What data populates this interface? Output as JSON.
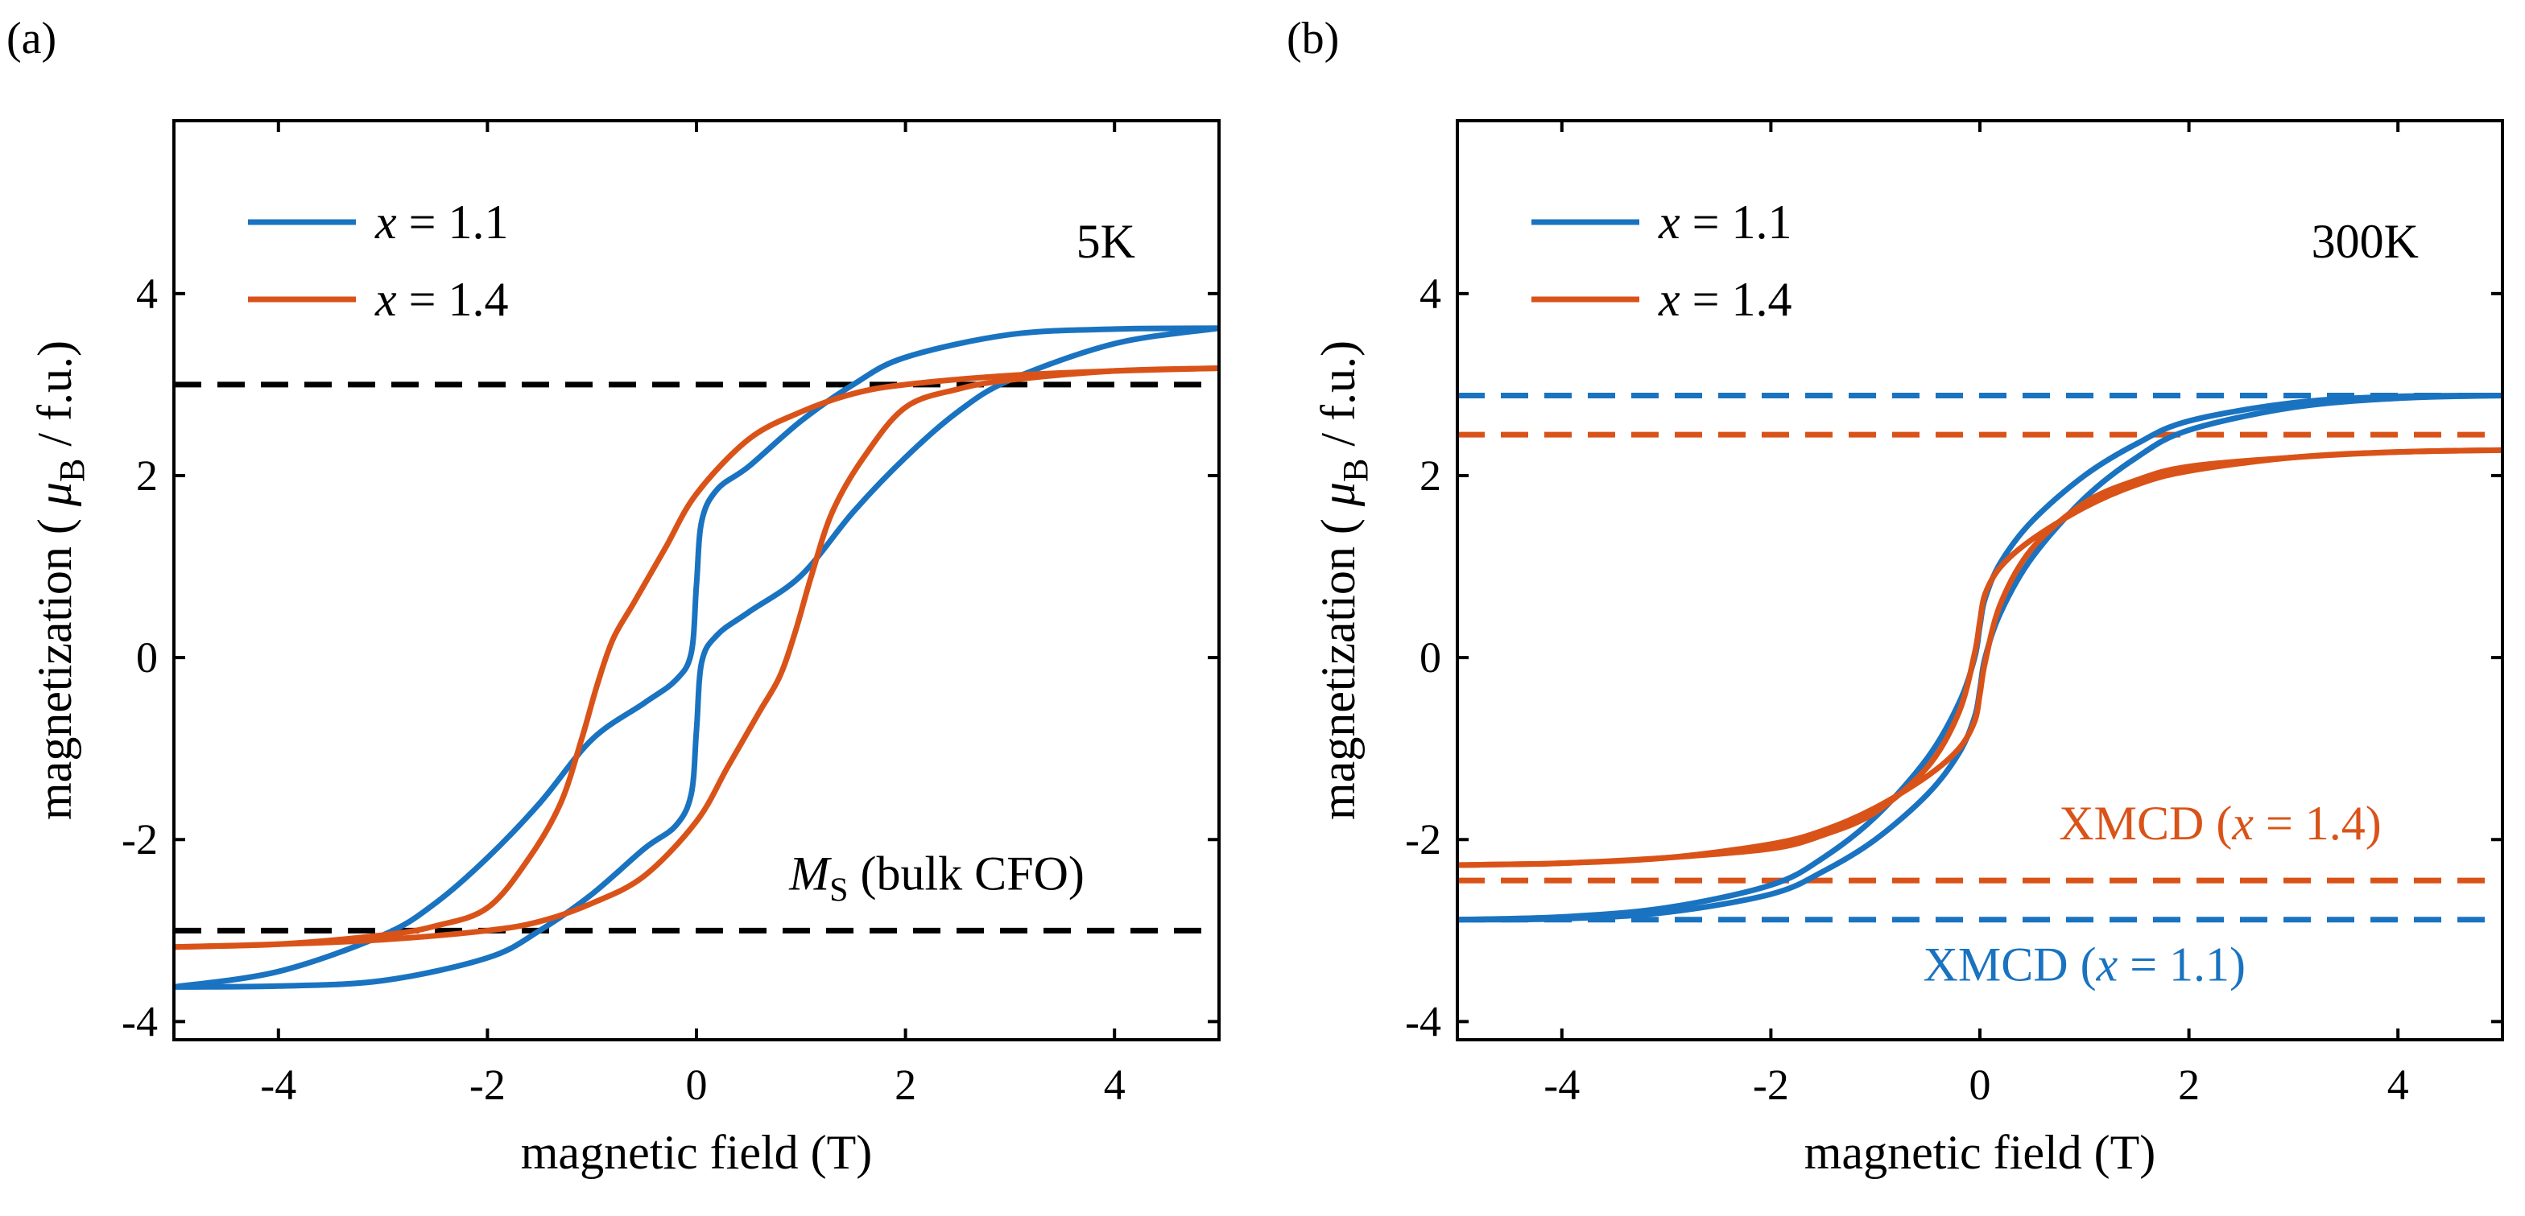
{
  "figure": {
    "panel_a_label": "(a)",
    "panel_b_label": "(b)"
  },
  "colors": {
    "x11": "#1a73c0",
    "x14": "#d95319",
    "reference": "#000000"
  },
  "chart_data": [
    {
      "type": "line",
      "panel": "(a)",
      "temperature_label": "5K",
      "xlabel": "magnetic field (T)",
      "ylabel": "magnetization ( μB / f.u.)",
      "ylabel_parts": {
        "prefix": "magnetization ( ",
        "mu": "μ",
        "sub": "B",
        "suffix": " / f.u.)"
      },
      "xlim": [
        -5,
        5
      ],
      "ylim": [
        -4.2,
        5.9
      ],
      "xticks": [
        -4,
        -2,
        0,
        2,
        4
      ],
      "xtick_labels": [
        "-4",
        "-2",
        "0",
        "2",
        "4"
      ],
      "yticks": [
        -4,
        -2,
        0,
        2,
        4
      ],
      "ytick_labels": [
        "-4",
        "-2",
        "0",
        "2",
        "4"
      ],
      "legend": {
        "position": "top-left",
        "entries": [
          {
            "var": "x",
            "rest": " = 1.1",
            "color": "#1a73c0"
          },
          {
            "var": "x",
            "rest": " = 1.4",
            "color": "#d95319"
          }
        ]
      },
      "reference_lines": [
        {
          "y": 3.0,
          "color": "#000000",
          "style": "dashed"
        },
        {
          "y": -3.0,
          "color": "#000000",
          "style": "dashed"
        }
      ],
      "annotations": [
        {
          "kind": "ms",
          "main": "M",
          "sub": "S",
          "rest": " (bulk CFO)",
          "color": "#000000",
          "x": 2.3,
          "y": -2.55
        }
      ],
      "series": [
        {
          "name": "x = 1.1 (descending)",
          "color": "#1a73c0",
          "x": [
            5,
            4,
            3,
            2,
            1.5,
            1,
            0.5,
            0.2,
            0.05,
            0,
            -0.05,
            -0.2,
            -0.5,
            -1,
            -1.5,
            -2,
            -2.5,
            -3,
            -4,
            -5
          ],
          "y": [
            3.62,
            3.61,
            3.55,
            3.3,
            3.0,
            2.6,
            2.1,
            1.85,
            1.5,
            0.8,
            0.05,
            -0.25,
            -0.5,
            -0.9,
            -1.6,
            -2.2,
            -2.7,
            -3.05,
            -3.45,
            -3.62
          ]
        },
        {
          "name": "x = 1.1 (ascending)",
          "color": "#1a73c0",
          "x": [
            -5,
            -4,
            -3,
            -2,
            -1.5,
            -1,
            -0.5,
            -0.2,
            -0.05,
            0,
            0.05,
            0.2,
            0.5,
            1,
            1.5,
            2,
            2.5,
            3,
            4,
            5
          ],
          "y": [
            -3.62,
            -3.61,
            -3.55,
            -3.3,
            -3.0,
            -2.6,
            -2.1,
            -1.85,
            -1.5,
            -0.8,
            -0.05,
            0.25,
            0.5,
            0.9,
            1.6,
            2.2,
            2.7,
            3.05,
            3.45,
            3.62
          ]
        },
        {
          "name": "x = 1.4 (descending)",
          "color": "#d95319",
          "x": [
            5,
            4,
            3,
            2,
            1.5,
            1,
            0.5,
            0,
            -0.3,
            -0.6,
            -0.8,
            -0.95,
            -1.1,
            -1.3,
            -1.6,
            -2,
            -2.5,
            -3,
            -4,
            -5
          ],
          "y": [
            3.18,
            3.15,
            3.1,
            3.0,
            2.9,
            2.7,
            2.4,
            1.8,
            1.2,
            0.6,
            0.2,
            -0.3,
            -0.9,
            -1.6,
            -2.2,
            -2.75,
            -2.95,
            -3.05,
            -3.15,
            -3.18
          ]
        },
        {
          "name": "x = 1.4 (ascending)",
          "color": "#d95319",
          "x": [
            -5,
            -4,
            -3,
            -2,
            -1.5,
            -1,
            -0.5,
            0,
            0.3,
            0.6,
            0.8,
            0.95,
            1.1,
            1.3,
            1.6,
            2,
            2.5,
            3,
            4,
            5
          ],
          "y": [
            -3.18,
            -3.15,
            -3.1,
            -3.0,
            -2.9,
            -2.7,
            -2.4,
            -1.8,
            -1.2,
            -0.6,
            -0.2,
            0.3,
            0.9,
            1.6,
            2.2,
            2.75,
            2.95,
            3.05,
            3.15,
            3.18
          ]
        }
      ]
    },
    {
      "type": "line",
      "panel": "(b)",
      "temperature_label": "300K",
      "xlabel": "magnetic field (T)",
      "ylabel": "magnetization ( μB / f.u.)",
      "ylabel_parts": {
        "prefix": "magnetization ( ",
        "mu": "μ",
        "sub": "B",
        "suffix": " / f.u.)"
      },
      "xlim": [
        -5,
        5
      ],
      "ylim": [
        -4.2,
        5.9
      ],
      "xticks": [
        -4,
        -2,
        0,
        2,
        4
      ],
      "xtick_labels": [
        "-4",
        "-2",
        "0",
        "2",
        "4"
      ],
      "yticks": [
        -4,
        -2,
        0,
        2,
        4
      ],
      "ytick_labels": [
        "-4",
        "-2",
        "0",
        "2",
        "4"
      ],
      "legend": {
        "position": "top-left",
        "entries": [
          {
            "var": "x",
            "rest": " = 1.1",
            "color": "#1a73c0"
          },
          {
            "var": "x",
            "rest": " = 1.4",
            "color": "#d95319"
          }
        ]
      },
      "reference_lines": [
        {
          "y": 2.88,
          "color": "#1a73c0",
          "style": "dashed"
        },
        {
          "y": 2.45,
          "color": "#d95319",
          "style": "dashed"
        },
        {
          "y": -2.45,
          "color": "#d95319",
          "style": "dashed"
        },
        {
          "y": -2.88,
          "color": "#1a73c0",
          "style": "dashed"
        }
      ],
      "annotations": [
        {
          "kind": "xmcd",
          "main": "XMCD (",
          "var": "x",
          "rest": " = 1.4)",
          "color": "#d95319",
          "x": 2.3,
          "y": -2.0
        },
        {
          "kind": "xmcd",
          "main": "XMCD (",
          "var": "x",
          "rest": " = 1.1)",
          "color": "#1a73c0",
          "x": 1.0,
          "y": -3.55
        }
      ],
      "series": [
        {
          "name": "x = 1.1 (descending)",
          "color": "#1a73c0",
          "x": [
            5,
            4,
            3,
            2,
            1.5,
            1,
            0.5,
            0.2,
            0.05,
            0,
            -0.05,
            -0.2,
            -0.5,
            -1,
            -1.5,
            -2,
            -3,
            -4,
            -5
          ],
          "y": [
            2.88,
            2.87,
            2.8,
            2.6,
            2.35,
            2.0,
            1.5,
            1.05,
            0.65,
            0.35,
            0.0,
            -0.5,
            -1.1,
            -1.75,
            -2.2,
            -2.5,
            -2.75,
            -2.85,
            -2.88
          ]
        },
        {
          "name": "x = 1.1 (ascending)",
          "color": "#1a73c0",
          "x": [
            -5,
            -4,
            -3,
            -2,
            -1.5,
            -1,
            -0.5,
            -0.2,
            -0.05,
            0,
            0.05,
            0.2,
            0.5,
            1,
            1.5,
            2,
            3,
            4,
            5
          ],
          "y": [
            -2.88,
            -2.87,
            -2.8,
            -2.6,
            -2.35,
            -2.0,
            -1.5,
            -1.05,
            -0.65,
            -0.35,
            0.0,
            0.5,
            1.1,
            1.75,
            2.2,
            2.5,
            2.75,
            2.85,
            2.88
          ]
        },
        {
          "name": "x = 1.4 (descending)",
          "color": "#d95319",
          "x": [
            5,
            4,
            3,
            2,
            1.5,
            1,
            0.5,
            0.2,
            0.05,
            0,
            -0.05,
            -0.2,
            -0.5,
            -1,
            -1.5,
            -2,
            -3,
            -4,
            -5
          ],
          "y": [
            2.28,
            2.26,
            2.2,
            2.05,
            1.9,
            1.65,
            1.3,
            1.0,
            0.7,
            0.4,
            0.05,
            -0.6,
            -1.2,
            -1.7,
            -1.95,
            -2.1,
            -2.2,
            -2.26,
            -2.28
          ]
        },
        {
          "name": "x = 1.4 (ascending)",
          "color": "#d95319",
          "x": [
            -5,
            -4,
            -3,
            -2,
            -1.5,
            -1,
            -0.5,
            -0.2,
            -0.05,
            0,
            0.05,
            0.2,
            0.5,
            1,
            1.5,
            2,
            3,
            4,
            5
          ],
          "y": [
            -2.28,
            -2.26,
            -2.2,
            -2.05,
            -1.9,
            -1.65,
            -1.3,
            -1.0,
            -0.7,
            -0.4,
            -0.05,
            0.6,
            1.2,
            1.7,
            1.95,
            2.1,
            2.2,
            2.26,
            2.28
          ]
        }
      ]
    }
  ]
}
